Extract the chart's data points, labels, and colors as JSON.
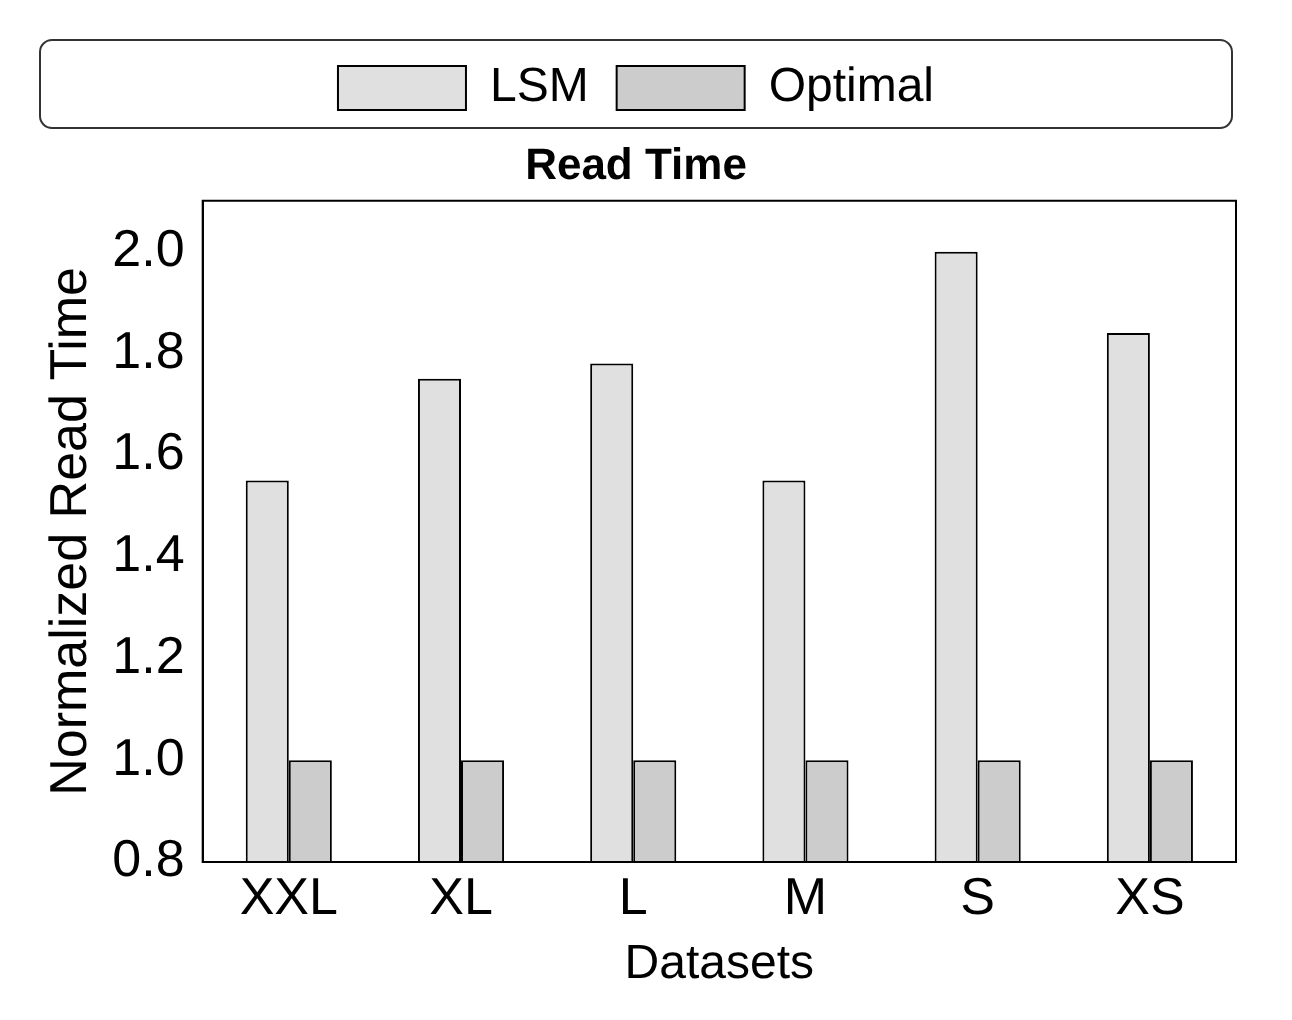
{
  "chart_data": {
    "type": "bar",
    "title": "Read Time",
    "xlabel": "Datasets",
    "ylabel": "Normalized Read Time",
    "categories": [
      "XXL",
      "XL",
      "L",
      "M",
      "S",
      "XS"
    ],
    "series": [
      {
        "name": "LSM",
        "color": "#e0e0e0",
        "values": [
          1.55,
          1.75,
          1.78,
          1.55,
          2.0,
          1.84
        ]
      },
      {
        "name": "Optimal",
        "color": "#cccccc",
        "values": [
          1.0,
          1.0,
          1.0,
          1.0,
          1.0,
          1.0
        ]
      }
    ],
    "ylim": [
      0.8,
      2.1
    ],
    "yticks": [
      0.8,
      {
        "value": 1,
        "label": "1.0"
      },
      1.2,
      1.4,
      1.6,
      1.8,
      {
        "value": 2,
        "label": "2.0"
      }
    ],
    "grid": false,
    "legend": "top"
  }
}
